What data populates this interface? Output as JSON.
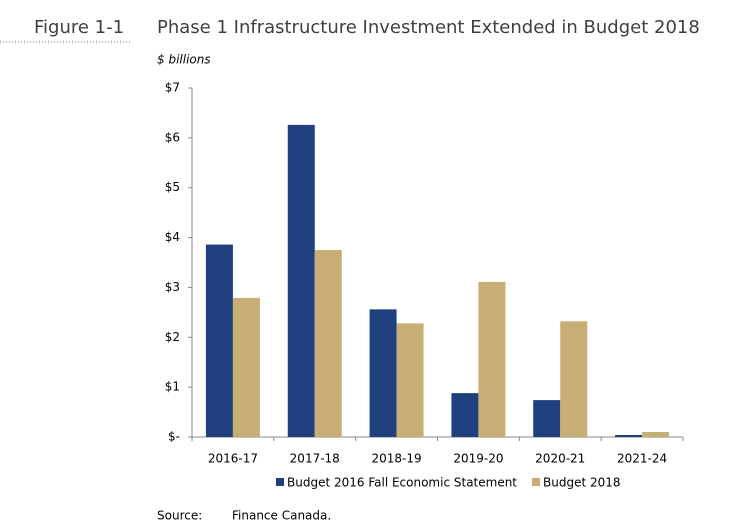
{
  "figure_label": "Figure 1-1",
  "chart_data": {
    "type": "bar",
    "title": "Phase 1 Infrastructure Investment Extended in Budget 2018",
    "y_label": "$ billions",
    "categories": [
      "2016-17",
      "2017-18",
      "2018-19",
      "2019-20",
      "2020-21",
      "2021-24"
    ],
    "series": [
      {
        "name": "Budget 2016 Fall Economic Statement",
        "color": "#1f3f7f",
        "values": [
          3.86,
          6.26,
          2.56,
          0.88,
          0.74,
          0.04
        ]
      },
      {
        "name": "Budget 2018",
        "color": "#c6ae74",
        "values": [
          2.79,
          3.75,
          2.28,
          3.11,
          2.32,
          0.1
        ]
      }
    ],
    "ylim": [
      0,
      7
    ],
    "yticks": [
      {
        "value": 0,
        "label": "$-"
      },
      {
        "value": 1,
        "label": "$1"
      },
      {
        "value": 2,
        "label": "$2"
      },
      {
        "value": 3,
        "label": "$3"
      },
      {
        "value": 4,
        "label": "$4"
      },
      {
        "value": 5,
        "label": "$5"
      },
      {
        "value": 6,
        "label": "$6"
      },
      {
        "value": 7,
        "label": "$7"
      }
    ],
    "grid": false,
    "legend": "bottom"
  },
  "source": {
    "label": "Source:",
    "text": "Finance Canada."
  }
}
